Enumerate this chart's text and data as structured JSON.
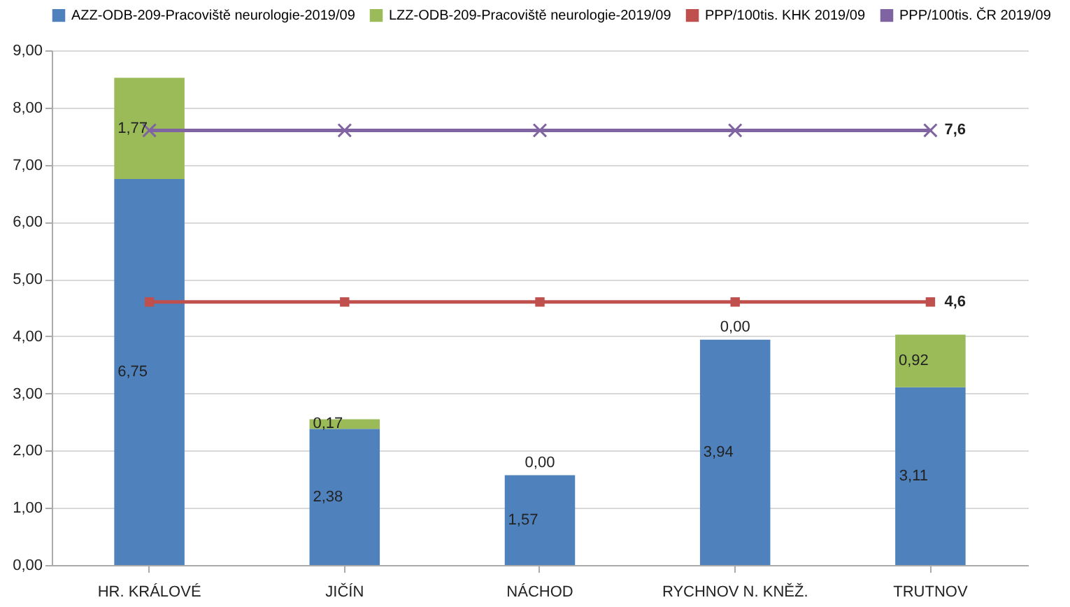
{
  "chart_data": {
    "type": "bar",
    "stacked": true,
    "categories": [
      "HR. KRÁLOVÉ",
      "JIČÍN",
      "NÁCHOD",
      "RYCHNOV N. KNĚŽ.",
      "TRUTNOV"
    ],
    "series": [
      {
        "name": "AZZ-ODB-209-Pracoviště neurologie-2019/09",
        "color": "#4f81bd",
        "values": [
          6.75,
          2.38,
          1.57,
          3.94,
          3.11
        ],
        "value_labels": [
          "6,75",
          "2,38",
          "1,57",
          "3,94",
          "3,11"
        ]
      },
      {
        "name": "LZZ-ODB-209-Pracoviště neurologie-2019/09",
        "color": "#9bbb59",
        "values": [
          1.77,
          0.17,
          0.0,
          0.0,
          0.92
        ],
        "value_labels": [
          "1,77",
          "0,17",
          "0,00",
          "0,00",
          "0,92"
        ]
      },
      {
        "name": "PPP/100tis. KHK 2019/09",
        "type": "line",
        "color": "#c0504d",
        "marker": "square",
        "values": [
          4.6,
          4.6,
          4.6,
          4.6,
          4.6
        ],
        "value_labels": [
          null,
          null,
          null,
          null,
          "4,6"
        ]
      },
      {
        "name": "PPP/100tis. ČR 2019/09",
        "type": "line",
        "color": "#8064a2",
        "marker": "cross",
        "values": [
          7.6,
          7.6,
          7.6,
          7.6,
          7.6
        ],
        "value_labels": [
          null,
          null,
          null,
          null,
          "7,6"
        ]
      }
    ],
    "ylim": [
      0,
      9
    ],
    "yticks": [
      {
        "value": 0,
        "label": "0,00"
      },
      {
        "value": 1,
        "label": "1,00"
      },
      {
        "value": 2,
        "label": "2,00"
      },
      {
        "value": 3,
        "label": "3,00"
      },
      {
        "value": 4,
        "label": "4,00"
      },
      {
        "value": 5,
        "label": "5,00"
      },
      {
        "value": 6,
        "label": "6,00"
      },
      {
        "value": 7,
        "label": "7,00"
      },
      {
        "value": 8,
        "label": "8,00"
      },
      {
        "value": 9,
        "label": "9,00"
      }
    ],
    "grid": "y",
    "legend": "top",
    "line_style": "solid"
  }
}
